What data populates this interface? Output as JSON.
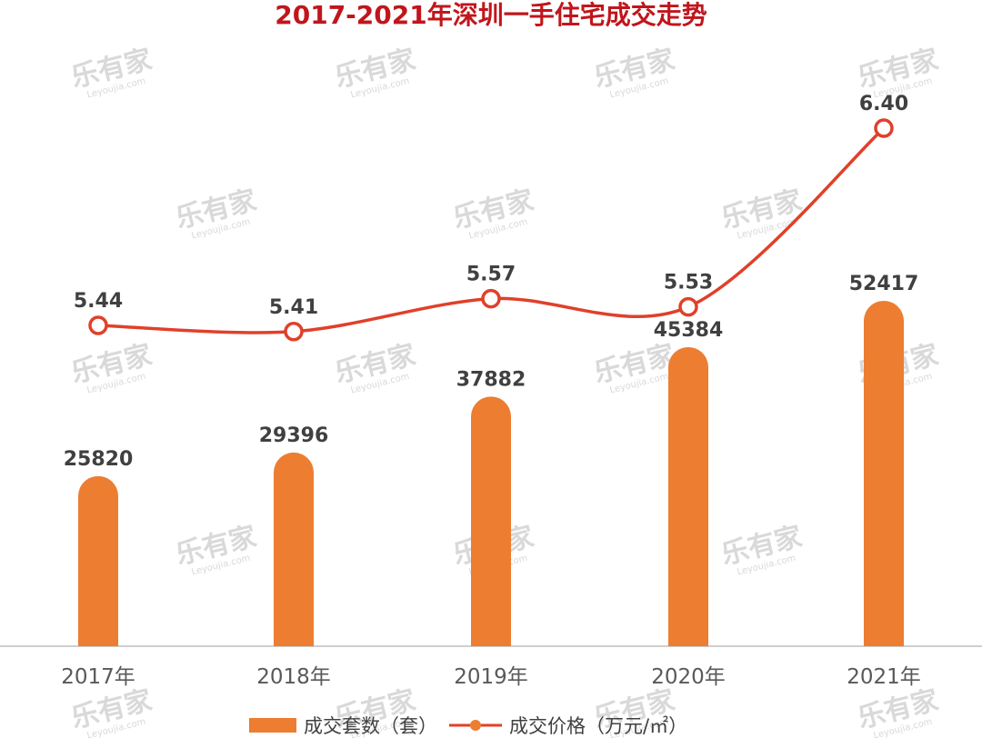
{
  "chart_data": {
    "type": "bar",
    "title": "2017-2021年深圳一手住宅成交走势",
    "categories": [
      "2017年",
      "2018年",
      "2019年",
      "2020年",
      "2021年"
    ],
    "series": [
      {
        "name": "成交套数（套）",
        "type": "bar",
        "values": [
          25820,
          29396,
          37882,
          45384,
          52417
        ]
      },
      {
        "name": "成交价格（万元/㎡）",
        "type": "line",
        "values": [
          5.44,
          5.41,
          5.57,
          5.53,
          6.4
        ]
      }
    ],
    "legend_position": "bottom",
    "grid": false
  },
  "watermark": {
    "text": "乐有家",
    "subtext": "Leyoujia.com"
  },
  "colors": {
    "bar": "#ed7d31",
    "line": "#e0402a",
    "title": "#c0161c",
    "label": "#404040",
    "axis": "#bfbfbf"
  }
}
